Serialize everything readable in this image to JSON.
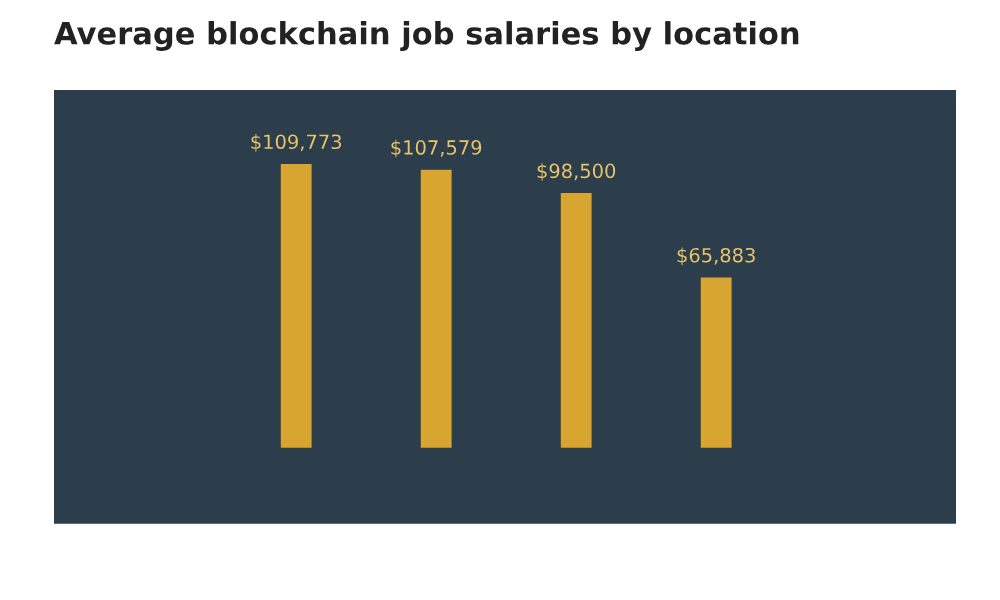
{
  "chart_data": {
    "type": "bar",
    "title": "Average blockchain job salaries by location",
    "categories": [
      null,
      null,
      null,
      null
    ],
    "values": [
      109773,
      107579,
      98500,
      65883
    ],
    "value_labels": [
      "$109,773",
      "$107,579",
      "$98,500",
      "$65,883"
    ],
    "color": "#d9a531"
  }
}
